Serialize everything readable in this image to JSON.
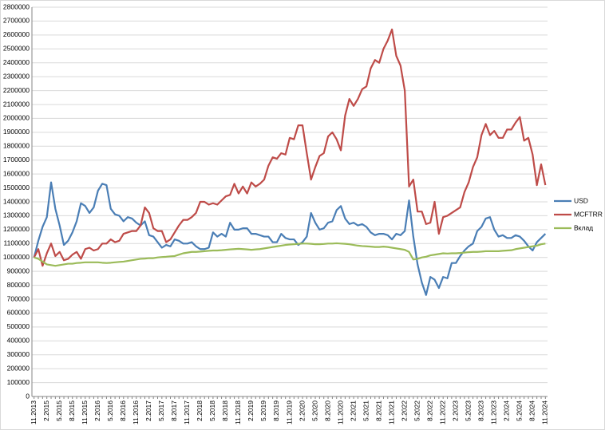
{
  "chart_data": {
    "type": "line",
    "categories": [
      "11.2013",
      null,
      null,
      "2.2015",
      null,
      null,
      "5.2015",
      null,
      null,
      "8.2015",
      null,
      null,
      "11.2015",
      null,
      null,
      "2.2016",
      null,
      null,
      "5.2016",
      null,
      null,
      "8.2016",
      null,
      null,
      "11.2016",
      null,
      null,
      "2.2017",
      null,
      null,
      "5.2017",
      null,
      null,
      "8.2017",
      null,
      null,
      "11.2017",
      null,
      null,
      "2.2018",
      null,
      null,
      "5.2018",
      null,
      null,
      "8.2018",
      null,
      null,
      "11.2018",
      null,
      null,
      "2.2019",
      null,
      null,
      "5.2019",
      null,
      null,
      "8.2019",
      null,
      null,
      "11.2019",
      null,
      null,
      "2.2020",
      null,
      null,
      "5.2020",
      null,
      null,
      "8.2020",
      null,
      null,
      "11.2020",
      null,
      null,
      "2.2021",
      null,
      null,
      "5.2021",
      null,
      null,
      "8.2021",
      null,
      null,
      "11.2021",
      null,
      null,
      "2.2022",
      null,
      null,
      "5.2022",
      null,
      null,
      "8.2022",
      null,
      null,
      "11.2022",
      null,
      null,
      "2.2023",
      null,
      null,
      "5.2023",
      null,
      null,
      "8.2023",
      null,
      null,
      "11.2023",
      null,
      null,
      "2.2024",
      null,
      null,
      "5.2024",
      null,
      null,
      "8.2024",
      null,
      null,
      "11.2024"
    ],
    "series": [
      {
        "name": "USD",
        "color": "#4a7eb5",
        "values": [
          1000000,
          1120000,
          1220000,
          1290000,
          1540000,
          1350000,
          1230000,
          1090000,
          1120000,
          1180000,
          1260000,
          1390000,
          1370000,
          1320000,
          1360000,
          1480000,
          1530000,
          1520000,
          1350000,
          1310000,
          1300000,
          1260000,
          1290000,
          1280000,
          1250000,
          1230000,
          1260000,
          1160000,
          1150000,
          1110000,
          1070000,
          1090000,
          1080000,
          1130000,
          1120000,
          1100000,
          1100000,
          1110000,
          1080000,
          1060000,
          1060000,
          1070000,
          1180000,
          1150000,
          1170000,
          1150000,
          1250000,
          1200000,
          1200000,
          1210000,
          1210000,
          1170000,
          1170000,
          1160000,
          1150000,
          1150000,
          1110000,
          1110000,
          1170000,
          1140000,
          1130000,
          1130000,
          1090000,
          1110000,
          1150000,
          1320000,
          1250000,
          1200000,
          1210000,
          1250000,
          1260000,
          1340000,
          1370000,
          1280000,
          1240000,
          1250000,
          1230000,
          1240000,
          1220000,
          1180000,
          1160000,
          1170000,
          1170000,
          1160000,
          1130000,
          1170000,
          1160000,
          1190000,
          1410000,
          1150000,
          950000,
          820000,
          730000,
          860000,
          840000,
          780000,
          860000,
          850000,
          960000,
          960000,
          1010000,
          1050000,
          1080000,
          1100000,
          1190000,
          1220000,
          1280000,
          1290000,
          1200000,
          1150000,
          1160000,
          1140000,
          1140000,
          1160000,
          1150000,
          1120000,
          1080000,
          1050000,
          1110000,
          1140000,
          1170000
        ]
      },
      {
        "name": "MCFTRR",
        "color": "#be4b48",
        "values": [
          1000000,
          1060000,
          940000,
          1030000,
          1100000,
          1010000,
          1040000,
          980000,
          990000,
          1020000,
          1040000,
          990000,
          1060000,
          1070000,
          1050000,
          1060000,
          1100000,
          1100000,
          1130000,
          1110000,
          1120000,
          1170000,
          1180000,
          1190000,
          1190000,
          1230000,
          1360000,
          1320000,
          1210000,
          1190000,
          1190000,
          1110000,
          1130000,
          1180000,
          1230000,
          1270000,
          1270000,
          1290000,
          1320000,
          1400000,
          1400000,
          1380000,
          1390000,
          1380000,
          1410000,
          1440000,
          1450000,
          1530000,
          1460000,
          1510000,
          1460000,
          1540000,
          1510000,
          1530000,
          1560000,
          1660000,
          1720000,
          1710000,
          1750000,
          1740000,
          1860000,
          1850000,
          1950000,
          1950000,
          1750000,
          1560000,
          1650000,
          1730000,
          1750000,
          1870000,
          1900000,
          1850000,
          1770000,
          2020000,
          2140000,
          2090000,
          2140000,
          2210000,
          2230000,
          2360000,
          2420000,
          2400000,
          2500000,
          2560000,
          2640000,
          2450000,
          2380000,
          2200000,
          1510000,
          1560000,
          1330000,
          1330000,
          1240000,
          1250000,
          1400000,
          1170000,
          1290000,
          1300000,
          1320000,
          1340000,
          1360000,
          1470000,
          1540000,
          1650000,
          1720000,
          1880000,
          1960000,
          1880000,
          1910000,
          1860000,
          1860000,
          1920000,
          1920000,
          1970000,
          2010000,
          1840000,
          1860000,
          1740000,
          1520000,
          1670000,
          1520000
        ]
      },
      {
        "name": "Вклад",
        "color": "#9bbb59",
        "values": [
          1000000,
          990000,
          970000,
          950000,
          945000,
          940000,
          945000,
          950000,
          955000,
          955000,
          960000,
          962000,
          965000,
          965000,
          965000,
          965000,
          962000,
          960000,
          962000,
          965000,
          968000,
          970000,
          975000,
          980000,
          985000,
          990000,
          992000,
          995000,
          995000,
          1000000,
          1003000,
          1005000,
          1008000,
          1010000,
          1020000,
          1030000,
          1035000,
          1040000,
          1040000,
          1042000,
          1045000,
          1048000,
          1050000,
          1050000,
          1052000,
          1055000,
          1058000,
          1060000,
          1062000,
          1060000,
          1058000,
          1055000,
          1058000,
          1060000,
          1065000,
          1070000,
          1075000,
          1080000,
          1085000,
          1090000,
          1093000,
          1095000,
          1098000,
          1100000,
          1100000,
          1098000,
          1095000,
          1095000,
          1097000,
          1100000,
          1100000,
          1102000,
          1100000,
          1098000,
          1095000,
          1090000,
          1085000,
          1082000,
          1080000,
          1078000,
          1075000,
          1075000,
          1078000,
          1075000,
          1070000,
          1065000,
          1060000,
          1055000,
          1040000,
          985000,
          990000,
          1000000,
          1005000,
          1015000,
          1020000,
          1025000,
          1030000,
          1028000,
          1030000,
          1030000,
          1032000,
          1035000,
          1038000,
          1040000,
          1040000,
          1042000,
          1045000,
          1045000,
          1045000,
          1045000,
          1048000,
          1050000,
          1052000,
          1060000,
          1065000,
          1070000,
          1075000,
          1080000,
          1085000,
          1095000,
          1100000
        ]
      }
    ],
    "ylim": [
      0,
      2800000
    ],
    "yticks": [
      0,
      100000,
      200000,
      300000,
      400000,
      500000,
      600000,
      700000,
      800000,
      900000,
      1000000,
      1100000,
      1200000,
      1300000,
      1400000,
      1500000,
      1600000,
      1700000,
      1800000,
      1900000,
      2000000,
      2100000,
      2200000,
      2300000,
      2400000,
      2500000,
      2600000,
      2700000,
      2800000
    ],
    "grid": true,
    "legend": "right"
  }
}
